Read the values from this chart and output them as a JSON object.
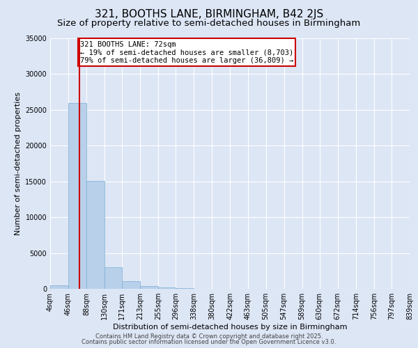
{
  "title": "321, BOOTHS LANE, BIRMINGHAM, B42 2JS",
  "subtitle": "Size of property relative to semi-detached houses in Birmingham",
  "xlabel": "Distribution of semi-detached houses by size in Birmingham",
  "ylabel": "Number of semi-detached properties",
  "footnote1": "Contains HM Land Registry data © Crown copyright and database right 2025.",
  "footnote2": "Contains public sector information licensed under the Open Government Licence v3.0.",
  "property_label": "321 BOOTHS LANE: 72sqm",
  "smaller_text": "← 19% of semi-detached houses are smaller (8,703)",
  "larger_text": "79% of semi-detached houses are larger (36,809) →",
  "property_size": 72,
  "bin_edges": [
    4,
    46,
    88,
    130,
    171,
    213,
    255,
    296,
    338,
    380,
    422,
    463,
    505,
    547,
    589,
    630,
    672,
    714,
    756,
    797,
    839
  ],
  "bin_labels": [
    "4sqm",
    "46sqm",
    "88sqm",
    "130sqm",
    "171sqm",
    "213sqm",
    "255sqm",
    "296sqm",
    "338sqm",
    "380sqm",
    "422sqm",
    "463sqm",
    "505sqm",
    "547sqm",
    "589sqm",
    "630sqm",
    "672sqm",
    "714sqm",
    "756sqm",
    "797sqm",
    "839sqm"
  ],
  "bar_heights": [
    500,
    26000,
    15100,
    3000,
    1100,
    380,
    200,
    50,
    20,
    10,
    5,
    3,
    2,
    1,
    1,
    0,
    0,
    0,
    0,
    0
  ],
  "bar_color": "#b8d0ea",
  "bar_edge_color": "#7aadd4",
  "redline_color": "#cc0000",
  "annotation_box_color": "#cc0000",
  "background_color": "#dde6f5",
  "ylim": [
    0,
    35000
  ],
  "title_fontsize": 11,
  "subtitle_fontsize": 9.5,
  "annotation_fontsize": 7.5,
  "axis_label_fontsize": 8,
  "tick_fontsize": 7
}
